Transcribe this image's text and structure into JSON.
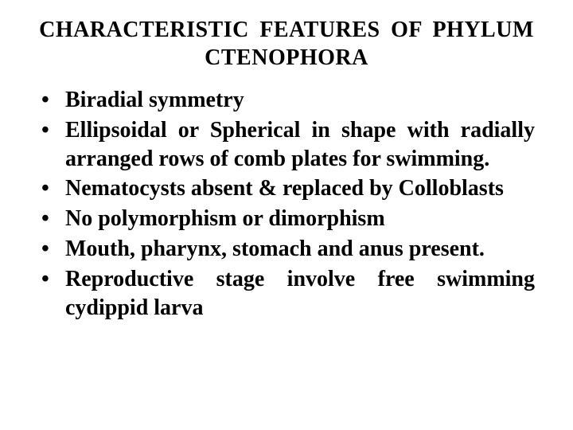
{
  "title_line1": "CHARACTERISTIC  FEATURES  OF  PHYLUM",
  "title_line2": "CTENOPHORA",
  "bullets": [
    "Biradial symmetry",
    "Ellipsoidal or Spherical in shape with radially arranged rows of comb plates for swimming.",
    "Nematocysts absent & replaced by Colloblasts",
    "No polymorphism or dimorphism",
    "Mouth, pharynx, stomach and anus present.",
    "Reproductive stage involve free swimming cydippid larva"
  ],
  "colors": {
    "background": "#ffffff",
    "text": "#000000"
  },
  "typography": {
    "title_fontsize": 28,
    "body_fontsize": 28,
    "font_family": "Times New Roman",
    "font_weight": "bold"
  }
}
